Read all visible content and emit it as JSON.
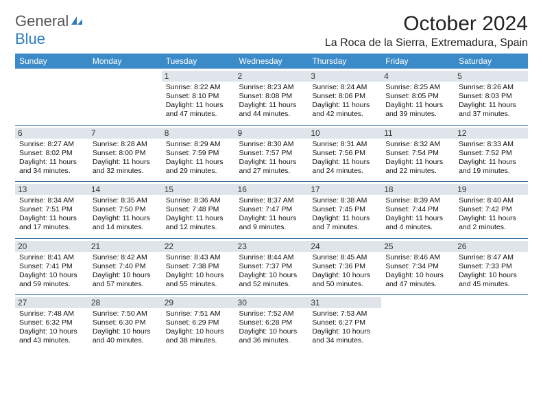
{
  "logo": {
    "word1": "General",
    "word2": "Blue"
  },
  "title": "October 2024",
  "location": "La Roca de la Sierra, Extremadura, Spain",
  "colors": {
    "header_bg": "#3b8bc9",
    "header_text": "#ffffff",
    "divider": "#3b6fa0",
    "daynum_bg": "#dfe5ea",
    "logo_gray": "#555555",
    "logo_blue": "#2b7cc0"
  },
  "weekdays": [
    "Sunday",
    "Monday",
    "Tuesday",
    "Wednesday",
    "Thursday",
    "Friday",
    "Saturday"
  ],
  "weeks": [
    [
      null,
      null,
      {
        "n": "1",
        "sr": "8:22 AM",
        "ss": "8:10 PM",
        "dl": "11 hours and 47 minutes."
      },
      {
        "n": "2",
        "sr": "8:23 AM",
        "ss": "8:08 PM",
        "dl": "11 hours and 44 minutes."
      },
      {
        "n": "3",
        "sr": "8:24 AM",
        "ss": "8:06 PM",
        "dl": "11 hours and 42 minutes."
      },
      {
        "n": "4",
        "sr": "8:25 AM",
        "ss": "8:05 PM",
        "dl": "11 hours and 39 minutes."
      },
      {
        "n": "5",
        "sr": "8:26 AM",
        "ss": "8:03 PM",
        "dl": "11 hours and 37 minutes."
      }
    ],
    [
      {
        "n": "6",
        "sr": "8:27 AM",
        "ss": "8:02 PM",
        "dl": "11 hours and 34 minutes."
      },
      {
        "n": "7",
        "sr": "8:28 AM",
        "ss": "8:00 PM",
        "dl": "11 hours and 32 minutes."
      },
      {
        "n": "8",
        "sr": "8:29 AM",
        "ss": "7:59 PM",
        "dl": "11 hours and 29 minutes."
      },
      {
        "n": "9",
        "sr": "8:30 AM",
        "ss": "7:57 PM",
        "dl": "11 hours and 27 minutes."
      },
      {
        "n": "10",
        "sr": "8:31 AM",
        "ss": "7:56 PM",
        "dl": "11 hours and 24 minutes."
      },
      {
        "n": "11",
        "sr": "8:32 AM",
        "ss": "7:54 PM",
        "dl": "11 hours and 22 minutes."
      },
      {
        "n": "12",
        "sr": "8:33 AM",
        "ss": "7:52 PM",
        "dl": "11 hours and 19 minutes."
      }
    ],
    [
      {
        "n": "13",
        "sr": "8:34 AM",
        "ss": "7:51 PM",
        "dl": "11 hours and 17 minutes."
      },
      {
        "n": "14",
        "sr": "8:35 AM",
        "ss": "7:50 PM",
        "dl": "11 hours and 14 minutes."
      },
      {
        "n": "15",
        "sr": "8:36 AM",
        "ss": "7:48 PM",
        "dl": "11 hours and 12 minutes."
      },
      {
        "n": "16",
        "sr": "8:37 AM",
        "ss": "7:47 PM",
        "dl": "11 hours and 9 minutes."
      },
      {
        "n": "17",
        "sr": "8:38 AM",
        "ss": "7:45 PM",
        "dl": "11 hours and 7 minutes."
      },
      {
        "n": "18",
        "sr": "8:39 AM",
        "ss": "7:44 PM",
        "dl": "11 hours and 4 minutes."
      },
      {
        "n": "19",
        "sr": "8:40 AM",
        "ss": "7:42 PM",
        "dl": "11 hours and 2 minutes."
      }
    ],
    [
      {
        "n": "20",
        "sr": "8:41 AM",
        "ss": "7:41 PM",
        "dl": "10 hours and 59 minutes."
      },
      {
        "n": "21",
        "sr": "8:42 AM",
        "ss": "7:40 PM",
        "dl": "10 hours and 57 minutes."
      },
      {
        "n": "22",
        "sr": "8:43 AM",
        "ss": "7:38 PM",
        "dl": "10 hours and 55 minutes."
      },
      {
        "n": "23",
        "sr": "8:44 AM",
        "ss": "7:37 PM",
        "dl": "10 hours and 52 minutes."
      },
      {
        "n": "24",
        "sr": "8:45 AM",
        "ss": "7:36 PM",
        "dl": "10 hours and 50 minutes."
      },
      {
        "n": "25",
        "sr": "8:46 AM",
        "ss": "7:34 PM",
        "dl": "10 hours and 47 minutes."
      },
      {
        "n": "26",
        "sr": "8:47 AM",
        "ss": "7:33 PM",
        "dl": "10 hours and 45 minutes."
      }
    ],
    [
      {
        "n": "27",
        "sr": "7:48 AM",
        "ss": "6:32 PM",
        "dl": "10 hours and 43 minutes."
      },
      {
        "n": "28",
        "sr": "7:50 AM",
        "ss": "6:30 PM",
        "dl": "10 hours and 40 minutes."
      },
      {
        "n": "29",
        "sr": "7:51 AM",
        "ss": "6:29 PM",
        "dl": "10 hours and 38 minutes."
      },
      {
        "n": "30",
        "sr": "7:52 AM",
        "ss": "6:28 PM",
        "dl": "10 hours and 36 minutes."
      },
      {
        "n": "31",
        "sr": "7:53 AM",
        "ss": "6:27 PM",
        "dl": "10 hours and 34 minutes."
      },
      null,
      null
    ]
  ],
  "labels": {
    "sunrise": "Sunrise:",
    "sunset": "Sunset:",
    "daylight": "Daylight:"
  }
}
